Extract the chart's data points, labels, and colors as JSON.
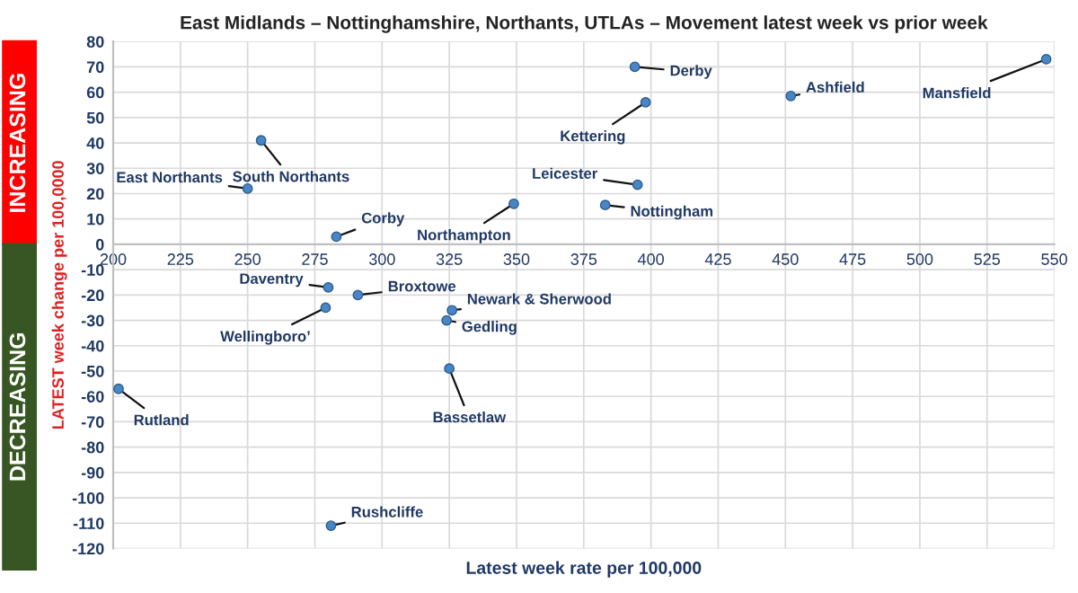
{
  "chart_data": {
    "type": "scatter",
    "title": "East Midlands – Nottinghamshire, Northants, UTLAs – Movement latest week vs prior week",
    "xlabel": "Latest week rate per 100,000",
    "ylabel": "LATEST week change per 100,0000",
    "x": [
      394,
      547,
      452,
      398,
      255,
      250,
      395,
      349,
      383,
      283,
      280,
      291,
      279,
      326,
      324,
      325,
      202,
      281
    ],
    "series": [
      {
        "color": "#4a86c5",
        "values": [
          70,
          73,
          58.5,
          56,
          41,
          22,
          23.5,
          16,
          15.5,
          3,
          -17,
          -20,
          -25,
          -26,
          -30,
          -49,
          -57,
          -111
        ]
      }
    ],
    "xlim": [
      200,
      550
    ],
    "xticks": [
      200,
      225,
      250,
      275,
      300,
      325,
      350,
      375,
      400,
      425,
      450,
      475,
      500,
      525,
      550
    ],
    "ylim": [
      -120,
      80
    ],
    "yticks": [
      -120,
      -110,
      -100,
      -90,
      -80,
      -70,
      -60,
      -50,
      -40,
      -30,
      -20,
      -10,
      0,
      10,
      20,
      30,
      40,
      50,
      60,
      70,
      80
    ],
    "grid": true,
    "marker": "circle",
    "annotations": [
      {
        "text": "Derby",
        "x": 394,
        "y": 70
      },
      {
        "text": "Mansfield",
        "x": 547,
        "y": 73
      },
      {
        "text": "Ashfield",
        "x": 452,
        "y": 58.5
      },
      {
        "text": "Kettering",
        "x": 398,
        "y": 56
      },
      {
        "text": "South Northants",
        "x": 255,
        "y": 41
      },
      {
        "text": "East Northants",
        "x": 250,
        "y": 22
      },
      {
        "text": "Leicester",
        "x": 395,
        "y": 23.5
      },
      {
        "text": "Northampton",
        "x": 349,
        "y": 16
      },
      {
        "text": "Nottingham",
        "x": 383,
        "y": 15.5
      },
      {
        "text": "Corby",
        "x": 283,
        "y": 3
      },
      {
        "text": "Daventry",
        "x": 280,
        "y": -17
      },
      {
        "text": "Broxtowe",
        "x": 291,
        "y": -20
      },
      {
        "text": "Wellingboro’",
        "x": 279,
        "y": -25
      },
      {
        "text": "Newark & Sherwood",
        "x": 326,
        "y": -26
      },
      {
        "text": "Gedling",
        "x": 324,
        "y": -30
      },
      {
        "text": "Bassetlaw",
        "x": 325,
        "y": -49
      },
      {
        "text": "Rutland",
        "x": 202,
        "y": -57
      },
      {
        "text": "Rushcliffe",
        "x": 281,
        "y": -111
      },
      "INCREASING",
      "DECREASING"
    ]
  }
}
